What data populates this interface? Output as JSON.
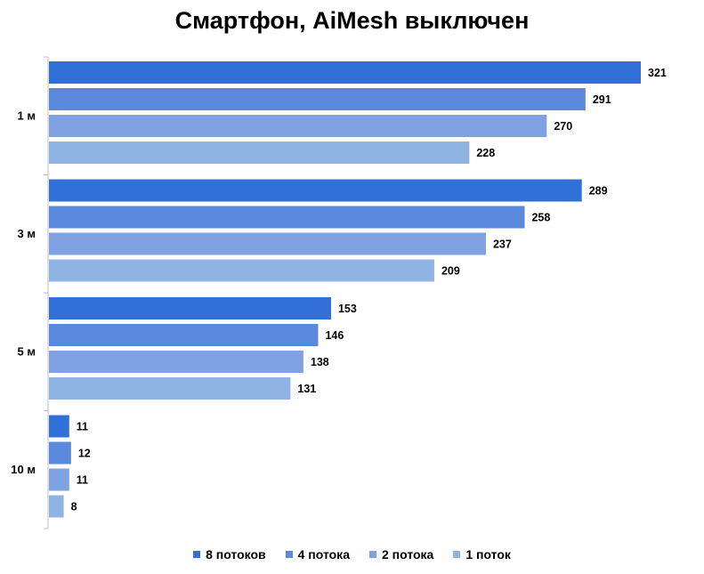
{
  "chart_data": {
    "type": "bar",
    "orientation": "horizontal",
    "title": "Смартфон, AiMesh выключен",
    "categories": [
      "1 м",
      "3 м",
      "5 м",
      "10 м"
    ],
    "series": [
      {
        "name": "8 потоков",
        "color": "#3070d8",
        "values": [
          321,
          289,
          153,
          11
        ]
      },
      {
        "name": "4 потока",
        "color": "#5b89dc",
        "values": [
          291,
          258,
          146,
          12
        ]
      },
      {
        "name": "2 потока",
        "color": "#7ea2e2",
        "values": [
          270,
          237,
          138,
          11
        ]
      },
      {
        "name": "1 поток",
        "color": "#8fb4e3",
        "values": [
          228,
          209,
          131,
          8
        ]
      }
    ],
    "xlim": [
      0,
      321
    ],
    "grid": false,
    "legend_position": "bottom"
  }
}
